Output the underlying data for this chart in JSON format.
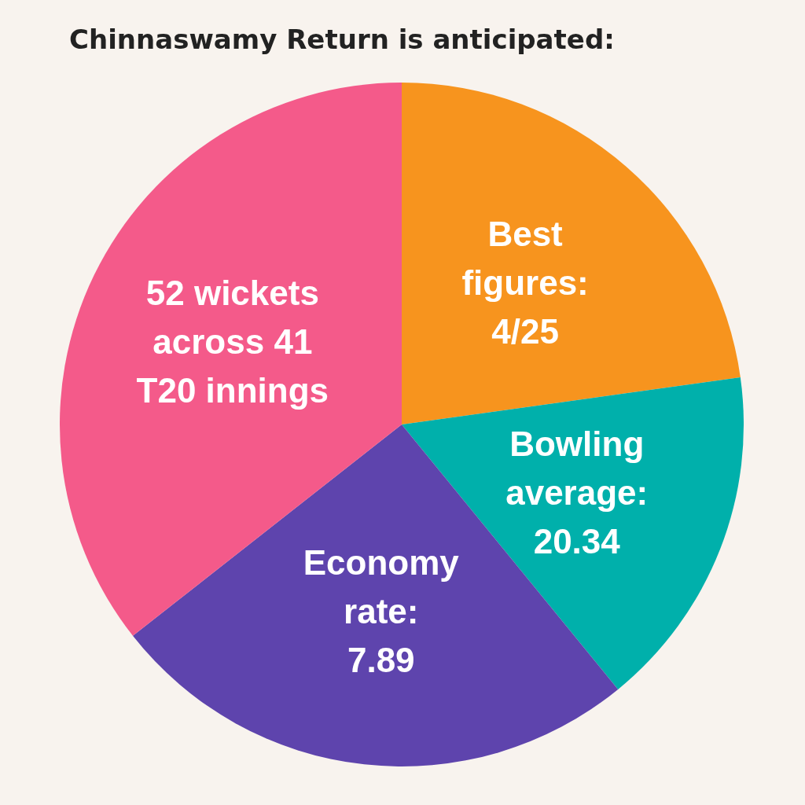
{
  "chart_data": {
    "type": "pie",
    "title": "Chinnaswamy Return is anticipated:",
    "categories": [
      "Best\nfigures:\n4/25",
      "Bowling\naverage:\n20.34",
      "Economy\nrate:\n7.89",
      "52 wickets\nacross 41\nT20 innings"
    ],
    "values": [
      22.8,
      16.3,
      25.3,
      35.6
    ],
    "colors": [
      "#f7941e",
      "#00b0ab",
      "#5e44ad",
      "#f45a8a"
    ]
  }
}
